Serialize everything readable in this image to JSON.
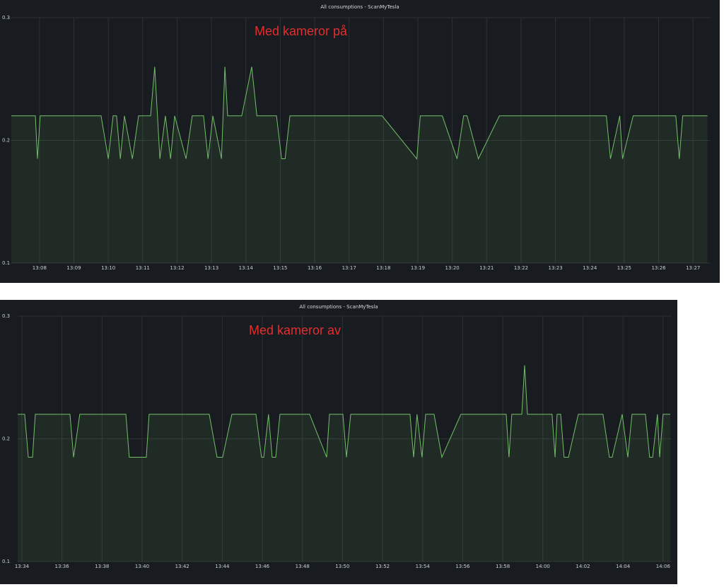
{
  "chart_data": [
    {
      "type": "line",
      "title": "All consumptions - ScanMyTesla",
      "annotation": "Med kameror på",
      "color": "#73bf69",
      "fill": true,
      "grid": true,
      "x": [
        787.18,
        787.88,
        787.94,
        788.02,
        789.79,
        790.0,
        790.14,
        790.24,
        790.35,
        790.47,
        790.7,
        790.88,
        791.23,
        791.35,
        791.5,
        791.66,
        791.81,
        791.93,
        792.26,
        792.44,
        792.77,
        792.9,
        793.04,
        793.29,
        793.39,
        793.47,
        793.88,
        794.17,
        794.32,
        794.89,
        795.04,
        795.14,
        795.28,
        797.96,
        798.97,
        799.07,
        799.71,
        800.14,
        800.33,
        800.43,
        800.76,
        801.37,
        804.48,
        804.6,
        804.87,
        804.95,
        805.26,
        806.5,
        806.6,
        806.7,
        807.42
      ],
      "values": [
        0.22,
        0.22,
        0.185,
        0.22,
        0.22,
        0.185,
        0.22,
        0.22,
        0.185,
        0.22,
        0.185,
        0.22,
        0.22,
        0.26,
        0.185,
        0.22,
        0.185,
        0.22,
        0.185,
        0.22,
        0.22,
        0.185,
        0.22,
        0.185,
        0.26,
        0.22,
        0.22,
        0.26,
        0.22,
        0.22,
        0.185,
        0.185,
        0.22,
        0.22,
        0.185,
        0.22,
        0.22,
        0.185,
        0.22,
        0.22,
        0.185,
        0.22,
        0.22,
        0.185,
        0.22,
        0.185,
        0.22,
        0.22,
        0.185,
        0.22,
        0.22
      ],
      "xlim": [
        787.16,
        807.51
      ],
      "xticks": [
        {
          "value": 788,
          "label": "13:08"
        },
        {
          "value": 789,
          "label": "13:09"
        },
        {
          "value": 790,
          "label": "13:10"
        },
        {
          "value": 791,
          "label": "13:11"
        },
        {
          "value": 792,
          "label": "13:12"
        },
        {
          "value": 793,
          "label": "13:13"
        },
        {
          "value": 794,
          "label": "13:14"
        },
        {
          "value": 795,
          "label": "13:15"
        },
        {
          "value": 796,
          "label": "13:16"
        },
        {
          "value": 797,
          "label": "13:17"
        },
        {
          "value": 798,
          "label": "13:18"
        },
        {
          "value": 799,
          "label": "13:19"
        },
        {
          "value": 800,
          "label": "13:20"
        },
        {
          "value": 801,
          "label": "13:21"
        },
        {
          "value": 802,
          "label": "13:22"
        },
        {
          "value": 803,
          "label": "13:23"
        },
        {
          "value": 804,
          "label": "13:24"
        },
        {
          "value": 805,
          "label": "13:25"
        },
        {
          "value": 806,
          "label": "13:26"
        },
        {
          "value": 807,
          "label": "13:27"
        }
      ],
      "ylim": [
        0.1,
        0.3
      ],
      "yticks": [
        0.1,
        0.2,
        0.3
      ]
    },
    {
      "type": "line",
      "title": "All consumptions - ScanMyTesla",
      "annotation": "Med kameror av",
      "color": "#73bf69",
      "fill": true,
      "grid": true,
      "x": [
        813.79,
        814.14,
        814.32,
        814.53,
        814.67,
        816.4,
        816.58,
        816.89,
        819.19,
        819.36,
        820.21,
        820.35,
        823.35,
        823.74,
        824.02,
        824.48,
        825.68,
        825.96,
        826.07,
        826.31,
        826.49,
        826.67,
        826.88,
        828.36,
        829.21,
        829.35,
        830.02,
        830.2,
        830.41,
        833.37,
        833.55,
        833.72,
        833.97,
        834.15,
        834.57,
        834.96,
        835.91,
        838.17,
        838.31,
        838.45,
        838.95,
        839.09,
        839.23,
        840.46,
        840.61,
        840.71,
        840.89,
        841.06,
        841.28,
        841.77,
        843.0,
        843.32,
        843.46,
        843.96,
        844.24,
        844.45,
        845.12,
        845.33,
        845.48,
        845.72,
        845.83,
        846.0,
        846.36
      ],
      "values": [
        0.22,
        0.22,
        0.185,
        0.185,
        0.22,
        0.22,
        0.185,
        0.22,
        0.22,
        0.185,
        0.185,
        0.22,
        0.22,
        0.185,
        0.185,
        0.22,
        0.22,
        0.185,
        0.185,
        0.22,
        0.185,
        0.185,
        0.22,
        0.22,
        0.185,
        0.22,
        0.22,
        0.185,
        0.22,
        0.22,
        0.185,
        0.22,
        0.185,
        0.22,
        0.22,
        0.185,
        0.22,
        0.22,
        0.185,
        0.22,
        0.22,
        0.26,
        0.22,
        0.22,
        0.185,
        0.22,
        0.22,
        0.185,
        0.185,
        0.22,
        0.22,
        0.185,
        0.185,
        0.22,
        0.185,
        0.22,
        0.22,
        0.185,
        0.185,
        0.22,
        0.185,
        0.22,
        0.22
      ],
      "xlim": [
        813.79,
        846.43
      ],
      "xticks": [
        {
          "value": 814,
          "label": "13:34"
        },
        {
          "value": 816,
          "label": "13:36"
        },
        {
          "value": 818,
          "label": "13:38"
        },
        {
          "value": 820,
          "label": "13:40"
        },
        {
          "value": 822,
          "label": "13:42"
        },
        {
          "value": 824,
          "label": "13:44"
        },
        {
          "value": 826,
          "label": "13:46"
        },
        {
          "value": 828,
          "label": "13:48"
        },
        {
          "value": 830,
          "label": "13:50"
        },
        {
          "value": 832,
          "label": "13:52"
        },
        {
          "value": 834,
          "label": "13:54"
        },
        {
          "value": 836,
          "label": "13:56"
        },
        {
          "value": 838,
          "label": "13:58"
        },
        {
          "value": 840,
          "label": "14:00"
        },
        {
          "value": 842,
          "label": "14:02"
        },
        {
          "value": 844,
          "label": "14:04"
        },
        {
          "value": 846,
          "label": "14:06"
        }
      ],
      "ylim": [
        0.1,
        0.3
      ],
      "yticks": [
        0.1,
        0.2,
        0.3
      ]
    }
  ]
}
